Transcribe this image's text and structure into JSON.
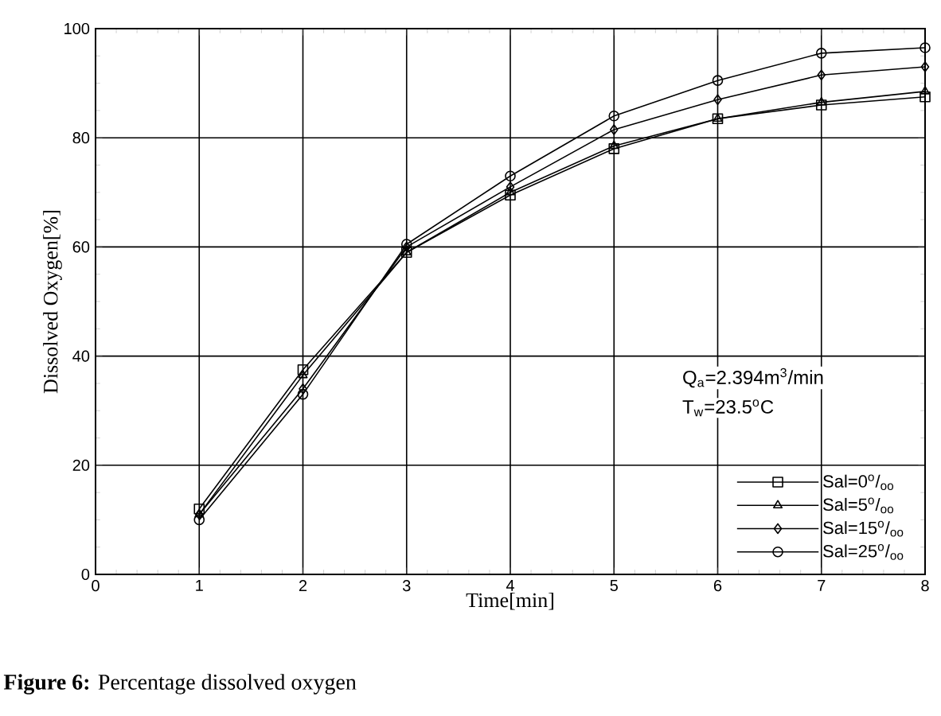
{
  "chart_data": {
    "type": "line",
    "xlabel": "Time[min]",
    "ylabel": "Dissolved Oxygen[%]",
    "x": [
      1,
      2,
      3,
      4,
      5,
      6,
      7,
      8
    ],
    "series": [
      {
        "name": "Sal=0$^{o}$/$_{oo}$",
        "color": "#000000",
        "marker": "square",
        "values": [
          12,
          37.5,
          59,
          69.5,
          78,
          83.5,
          86,
          87.5
        ]
      },
      {
        "name": "Sal=5$^{o}$/$_{oo}$",
        "color": "#000000",
        "marker": "triangle",
        "values": [
          11,
          36.5,
          59,
          70,
          78.5,
          83.5,
          86.5,
          88.5
        ]
      },
      {
        "name": "Sal=15$^{o}$/$_{oo}$",
        "color": "#000000",
        "marker": "diamond",
        "values": [
          11,
          34,
          60,
          71,
          81.5,
          87,
          91.5,
          93
        ]
      },
      {
        "name": "Sal=25$^{o}$/$_{oo}$",
        "color": "#000000",
        "marker": "circle",
        "values": [
          10,
          33,
          60.5,
          73,
          84,
          90.5,
          95.5,
          96.5
        ]
      }
    ],
    "xlim": [
      0,
      8
    ],
    "ylim": [
      0,
      100
    ],
    "xticks": [
      0,
      1,
      2,
      3,
      4,
      5,
      6,
      7,
      8
    ],
    "yticks": [
      0,
      20,
      40,
      60,
      80,
      100
    ],
    "grid": true,
    "legend": "bottom right",
    "line_style": "solid",
    "annotations": [
      "Q$_{a}$=2.394m$^{3}$/min",
      "T$_{w}$=23.5$^{o}$C",
      "**Figure 6:** Percentage dissolved oxygen"
    ]
  }
}
